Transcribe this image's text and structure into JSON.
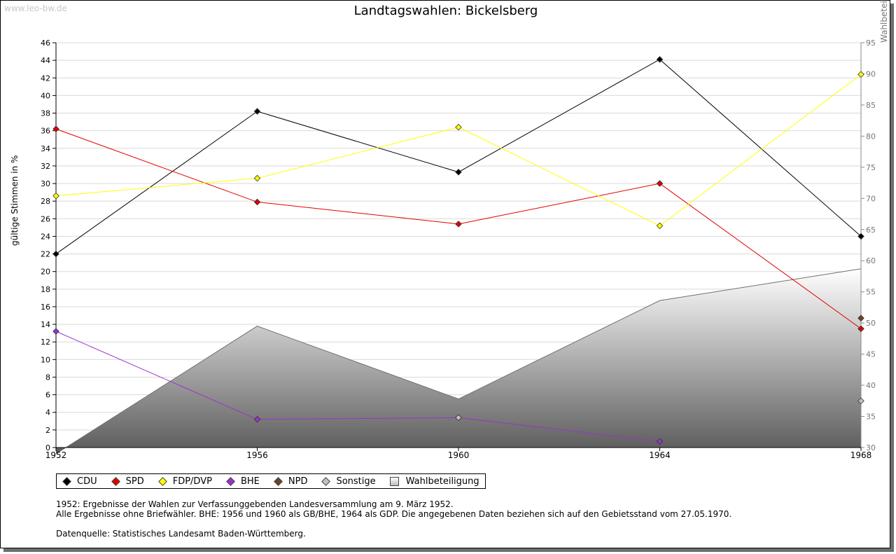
{
  "watermark": "www.leo-bw.de",
  "chart_data": {
    "type": "line",
    "title": "Landtagswahlen: Bickelsberg",
    "ylabel": "gültige Stimmen in %",
    "y2label": "Wahlbeteiligung in %",
    "x": [
      "1952",
      "1956",
      "1960",
      "1964",
      "1968"
    ],
    "ylim": [
      0,
      46
    ],
    "y2lim": [
      30,
      95
    ],
    "yticks": [
      0,
      2,
      4,
      6,
      8,
      10,
      12,
      14,
      16,
      18,
      20,
      22,
      24,
      26,
      28,
      30,
      32,
      34,
      36,
      38,
      40,
      42,
      44,
      46
    ],
    "y2ticks": [
      30,
      35,
      40,
      45,
      50,
      55,
      60,
      65,
      70,
      75,
      80,
      85,
      90,
      95
    ],
    "grid": true,
    "series": [
      {
        "name": "CDU",
        "color": "#000000",
        "values": [
          22.0,
          38.2,
          31.3,
          44.1,
          24.0
        ]
      },
      {
        "name": "SPD",
        "color": "#e00000",
        "values": [
          36.2,
          27.9,
          25.4,
          30.0,
          13.5
        ]
      },
      {
        "name": "FDP/DVP",
        "color": "#ffff00",
        "values": [
          28.6,
          30.6,
          36.4,
          25.2,
          42.4
        ]
      },
      {
        "name": "BHE",
        "color": "#9933cc",
        "values": [
          13.2,
          3.2,
          3.4,
          0.7,
          null
        ]
      },
      {
        "name": "NPD",
        "color": "#6b4226",
        "values": [
          null,
          null,
          null,
          null,
          14.7
        ]
      },
      {
        "name": "Sonstige",
        "color": "#c0c0c0",
        "values": [
          null,
          null,
          3.4,
          null,
          5.3
        ]
      }
    ],
    "turnout": {
      "name": "Wahlbeteiligung",
      "axis": "right",
      "values": [
        29.0,
        49.5,
        37.8,
        53.6,
        58.7
      ]
    },
    "legend": [
      "CDU",
      "SPD",
      "FDP/DVP",
      "BHE",
      "NPD",
      "Sonstige",
      "Wahlbeteiligung"
    ],
    "legend_position": "bottom-left"
  },
  "notes": [
    "1952: Ergebnisse der Wahlen zur Verfassunggebenden Landesversammlung am 9. März 1952.",
    "Alle Ergebnisse ohne Briefwähler. BHE: 1956 und 1960 als GB/BHE, 1964 als GDP. Die angegebenen Daten beziehen sich auf den Gebietsstand vom 27.05.1970.",
    "",
    "Datenquelle: Statistisches Landesamt Baden-Württemberg."
  ]
}
